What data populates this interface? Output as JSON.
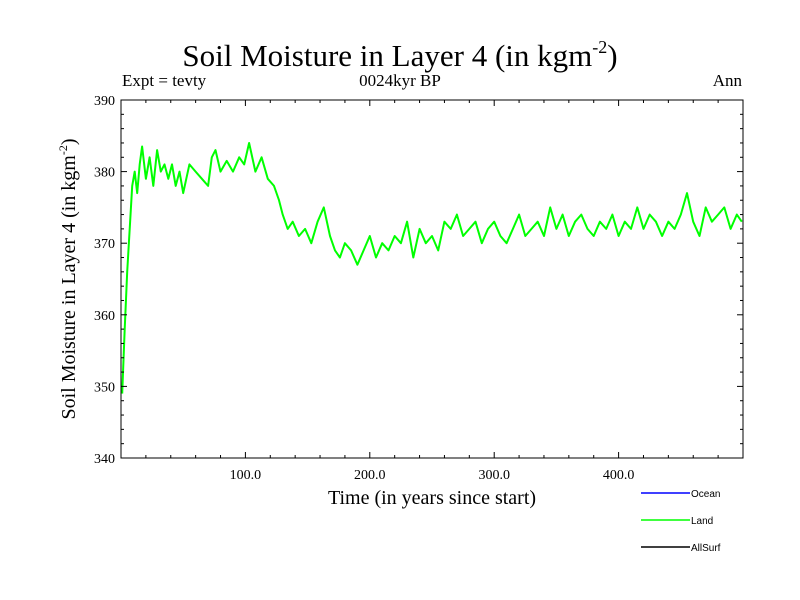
{
  "header": {
    "title_main": "Soil Moisture in Layer 4 (in kgm",
    "title_sup": "-2",
    "title_end": ")",
    "expt": "Expt = tevty",
    "period": "0024kyr BP",
    "season": "Ann"
  },
  "chart_data": {
    "type": "line",
    "title": "Soil Moisture in Layer 4 (in kgm-2)",
    "xlabel": "Time (in years since start)",
    "ylabel_main": "Soil Moisture in Layer 4 (in kgm",
    "ylabel_sup": "-2",
    "ylabel_end": ")",
    "xlim": [
      0,
      500
    ],
    "ylim": [
      340,
      390
    ],
    "x_ticks": [
      100,
      200,
      300,
      400
    ],
    "x_tick_labels": [
      "100.0",
      "200.0",
      "300.0",
      "400.0"
    ],
    "y_ticks": [
      340,
      350,
      360,
      370,
      380,
      390
    ],
    "y_tick_labels": [
      "340",
      "350",
      "360",
      "370",
      "380",
      "390"
    ],
    "grid": false,
    "legend_position": "bottom-right",
    "series": [
      {
        "name": "Ocean",
        "color": "#0000ff",
        "values": []
      },
      {
        "name": "Land",
        "color": "#00ff00",
        "x": [
          1,
          3,
          5,
          7,
          9,
          11,
          13,
          15,
          17,
          20,
          23,
          26,
          29,
          32,
          35,
          38,
          41,
          44,
          47,
          50,
          55,
          60,
          65,
          70,
          73,
          76,
          80,
          85,
          90,
          95,
          99,
          103,
          108,
          113,
          118,
          123,
          127,
          130,
          134,
          138,
          143,
          148,
          153,
          158,
          163,
          168,
          172,
          176,
          180,
          185,
          190,
          195,
          200,
          205,
          210,
          215,
          220,
          225,
          230,
          235,
          240,
          245,
          250,
          255,
          260,
          265,
          270,
          275,
          280,
          285,
          290,
          295,
          300,
          305,
          310,
          315,
          320,
          325,
          330,
          335,
          340,
          345,
          350,
          355,
          360,
          365,
          370,
          375,
          380,
          385,
          390,
          395,
          400,
          405,
          410,
          415,
          420,
          425,
          430,
          435,
          440,
          445,
          450,
          455,
          460,
          465,
          470,
          475,
          480,
          485,
          490,
          495,
          499
        ],
        "values": [
          349,
          358,
          366,
          372,
          378,
          380,
          377,
          381,
          383.5,
          379,
          382,
          378,
          383,
          380,
          381,
          379,
          381,
          378,
          380,
          377,
          381,
          380,
          379,
          378,
          382,
          383,
          380,
          381.5,
          380,
          382,
          381,
          384,
          380,
          382,
          379,
          378,
          376,
          374,
          372,
          373,
          371,
          372,
          370,
          373,
          375,
          371,
          369,
          368,
          370,
          369,
          367,
          369,
          371,
          368,
          370,
          369,
          371,
          370,
          373,
          368,
          372,
          370,
          371,
          369,
          373,
          372,
          374,
          371,
          372,
          373,
          370,
          372,
          373,
          371,
          370,
          372,
          374,
          371,
          372,
          373,
          371,
          375,
          372,
          374,
          371,
          373,
          374,
          372,
          371,
          373,
          372,
          374,
          371,
          373,
          372,
          375,
          372,
          374,
          373,
          371,
          373,
          372,
          374,
          377,
          373,
          371,
          375,
          373,
          374,
          375,
          372,
          374,
          373
        ]
      },
      {
        "name": "AllSurf",
        "color": "#000000",
        "values": []
      }
    ]
  }
}
